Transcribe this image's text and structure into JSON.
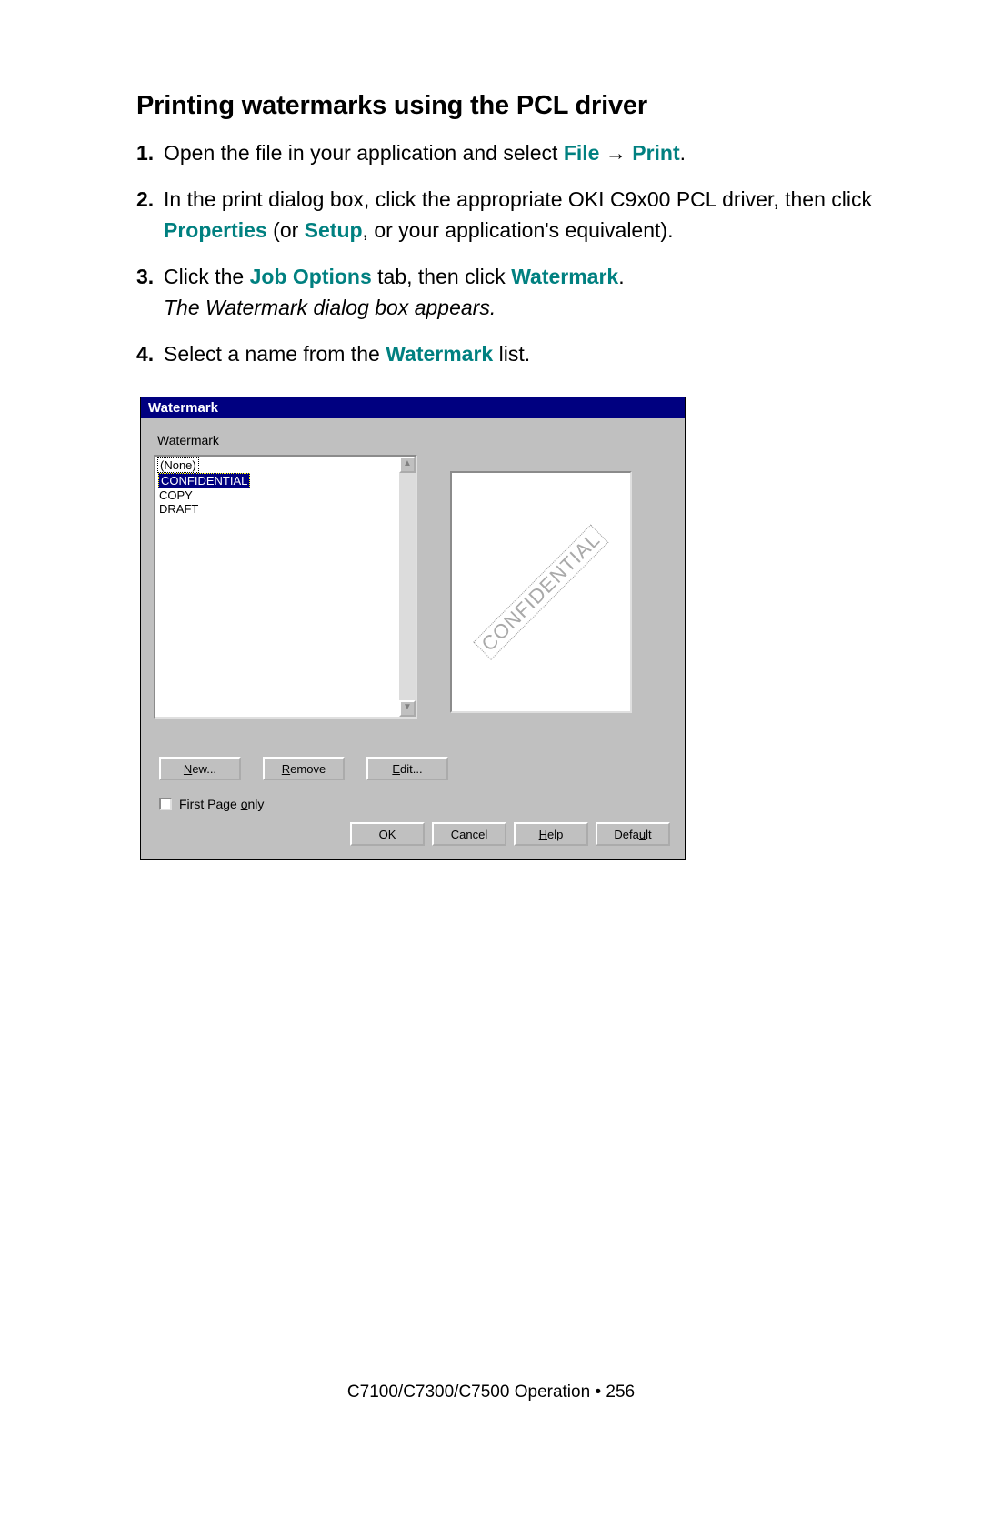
{
  "heading": "Printing watermarks using the PCL driver",
  "steps": {
    "s1": {
      "num": "1.",
      "pre": "Open the file in your application and select ",
      "file": "File",
      "arrow": " → ",
      "print": "Print",
      "post": "."
    },
    "s2": {
      "num": "2.",
      "pre": "In the print dialog box, click the appropriate OKI C9x00 PCL driver, then click ",
      "properties": "Properties",
      "mid": " (or ",
      "setup": "Setup",
      "post": ", or your application's equivalent)."
    },
    "s3": {
      "num": "3.",
      "pre": "Click the ",
      "job_options": "Job Options",
      "mid": " tab, then click ",
      "watermark": "Watermark",
      "post": ".",
      "italic": "The Watermark dialog box appears."
    },
    "s4": {
      "num": "4.",
      "pre": "Select a name from the ",
      "watermark": "Watermark",
      "post": " list."
    }
  },
  "dialog": {
    "title": "Watermark",
    "group_label": "Watermark",
    "list": {
      "none": "(None)",
      "confidential": "CONFIDENTIAL",
      "copy": "COPY",
      "draft": "DRAFT"
    },
    "preview_text": "CONFIDENTIAL",
    "buttons": {
      "new_u": "N",
      "new_rest": "ew...",
      "remove_u": "R",
      "remove_rest": "emove",
      "edit_u": "E",
      "edit_rest": "dit..."
    },
    "first_page_pre": "First Page ",
    "first_page_u": "o",
    "first_page_post": "nly",
    "bottom": {
      "ok": "OK",
      "cancel": "Cancel",
      "help_u": "H",
      "help_rest": "elp",
      "default_pre": "Defa",
      "default_u": "u",
      "default_post": "lt"
    }
  },
  "footer": "C7100/C7300/C7500  Operation • 256",
  "colors": {
    "link_green": "#008080",
    "titlebar_bg": "#000080",
    "dialog_bg": "#c0c0c0",
    "wm_gray": "#a9a9a9"
  }
}
